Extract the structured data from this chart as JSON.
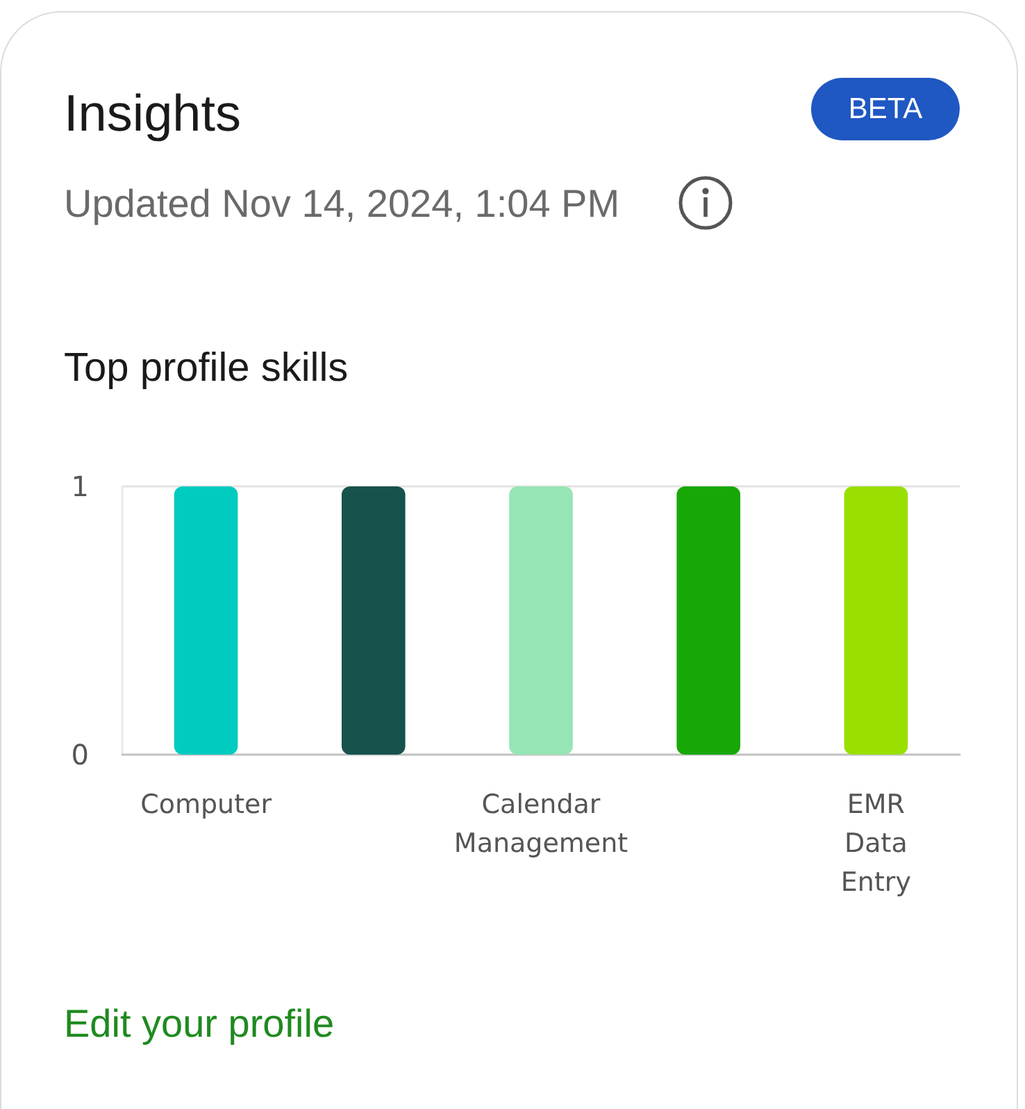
{
  "chart_data": {
    "type": "bar",
    "title": "Insights",
    "subtitle": "Updated Nov 14, 2024, 1:04 PM",
    "annotations": [
      "BETA",
      "Top profile skills",
      "Edit your profile"
    ],
    "categories": [
      "Computer",
      null,
      "Calendar Management",
      null,
      "EMR Data Entry"
    ],
    "values": [
      1,
      1,
      1,
      1,
      1
    ],
    "colors": [
      "#00cbbf",
      "#17524c",
      "#96e5b5",
      "#17a806",
      "#99e000"
    ],
    "ylim": [
      0,
      1
    ],
    "yticks": [
      0,
      1
    ],
    "grid": "y"
  }
}
